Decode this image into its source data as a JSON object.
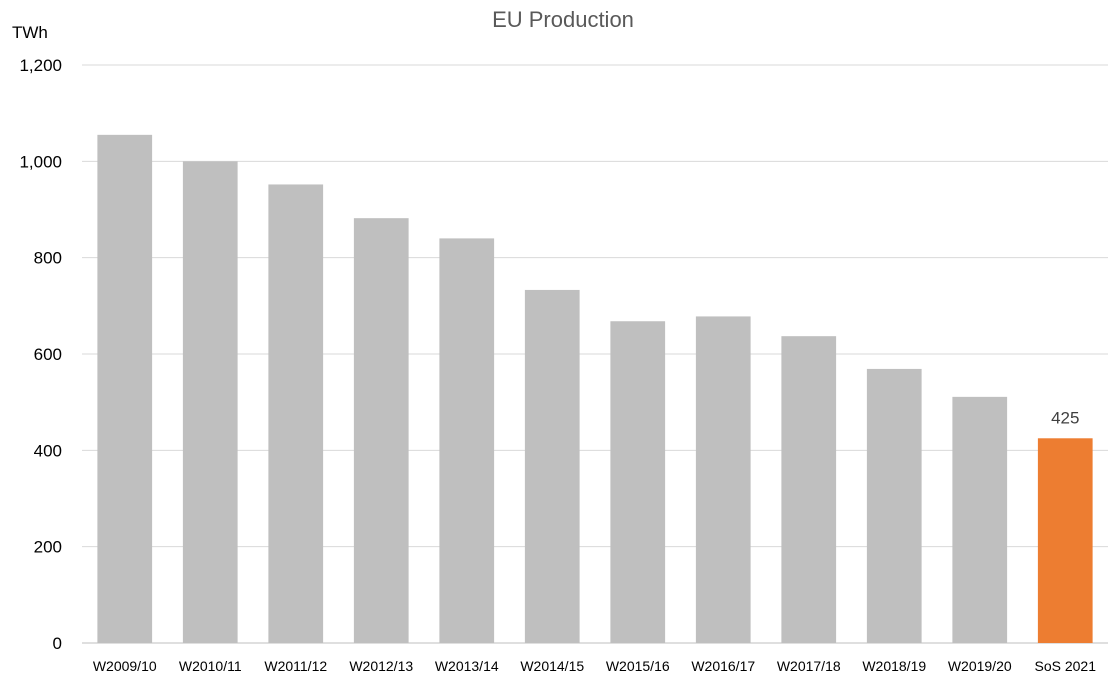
{
  "chart_data": {
    "type": "bar",
    "title": "EU Production",
    "ylabel": "TWh",
    "xlabel": "",
    "ylim": [
      0,
      1200
    ],
    "yticks": [
      0,
      200,
      400,
      600,
      800,
      1000,
      1200
    ],
    "ytick_labels": [
      "0",
      "200",
      "400",
      "600",
      "800",
      "1,000",
      "1,200"
    ],
    "grid": true,
    "categories": [
      "W2009/10",
      "W2010/11",
      "W2011/12",
      "W2012/13",
      "W2013/14",
      "W2014/15",
      "W2015/16",
      "W2016/17",
      "W2017/18",
      "W2018/19",
      "W2019/20",
      "SoS 2021"
    ],
    "values": [
      1055,
      1000,
      952,
      882,
      840,
      733,
      668,
      678,
      637,
      569,
      511,
      425
    ],
    "data_labels": [
      null,
      null,
      null,
      null,
      null,
      null,
      null,
      null,
      null,
      null,
      null,
      "425"
    ],
    "colors": {
      "default_bar": "#bfbfbf",
      "highlight_bar": "#ed7d31",
      "highlight_index": 11
    }
  }
}
